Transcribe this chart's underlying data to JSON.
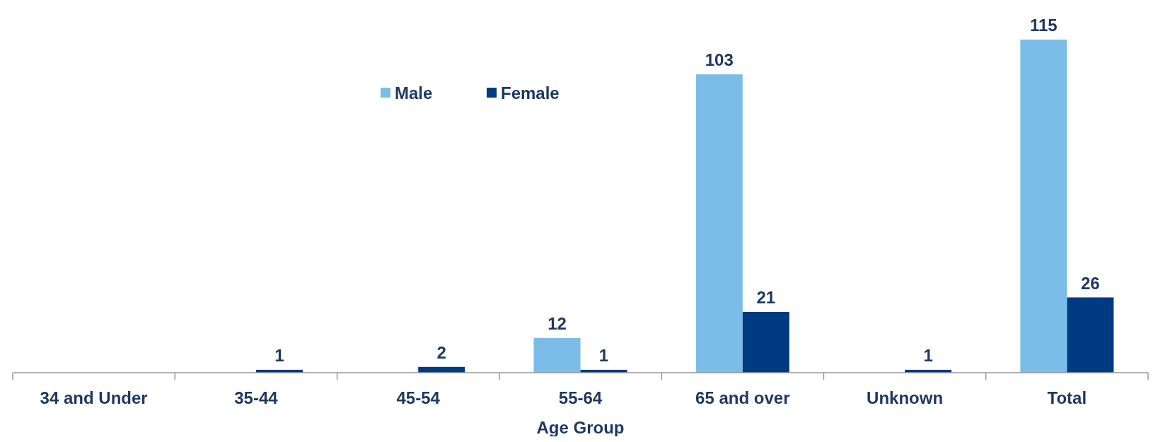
{
  "chart_data": {
    "type": "bar",
    "xlabel": "Age Group",
    "categories": [
      "34 and Under",
      "35-44",
      "45-54",
      "55-64",
      "65 and over",
      "Unknown",
      "Total"
    ],
    "series": [
      {
        "name": "Male",
        "color": "#7bbde8",
        "values": [
          null,
          null,
          null,
          12,
          103,
          null,
          115
        ]
      },
      {
        "name": "Female",
        "color": "#003a80",
        "values": [
          null,
          1,
          2,
          1,
          21,
          1,
          26
        ]
      }
    ],
    "data_labels": true,
    "legend": "top"
  }
}
